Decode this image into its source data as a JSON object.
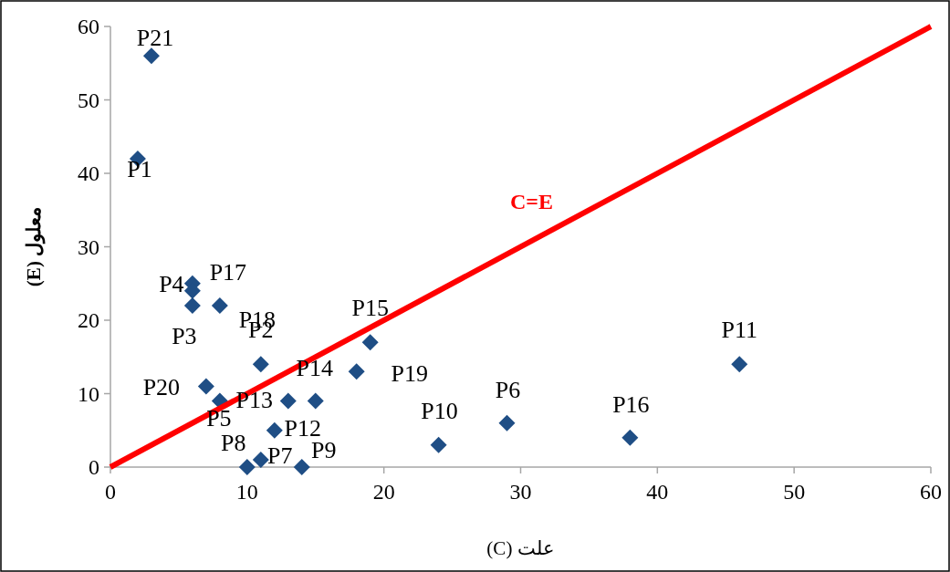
{
  "chart_data": {
    "type": "scatter",
    "xlabel": "علت (C)",
    "ylabel": "معلول (E)",
    "xlim": [
      0,
      60
    ],
    "ylim": [
      0,
      60
    ],
    "xticks": [
      0,
      10,
      20,
      30,
      40,
      50,
      60
    ],
    "yticks": [
      0,
      10,
      20,
      30,
      40,
      50,
      60
    ],
    "grid": false,
    "marker": "diamond",
    "series": [
      {
        "color": "#1f4e85",
        "x": [
          2,
          11,
          6,
          6,
          8,
          29,
          11,
          10,
          14,
          24,
          46,
          12,
          13,
          15,
          19,
          38,
          6,
          8,
          18,
          7,
          3
        ],
        "values": [
          42,
          14,
          22,
          25,
          9,
          6,
          1,
          0,
          0,
          3,
          14,
          5,
          9,
          9,
          17,
          4,
          24,
          22,
          13,
          11,
          56
        ]
      },
      {
        "type": "line",
        "name": "C=E",
        "color": "#ff0000",
        "marker": "none",
        "line_style": "solid",
        "x": [
          0,
          60
        ],
        "values": [
          0,
          60
        ]
      }
    ],
    "annotations": [
      {
        "text": "P1",
        "x": 2,
        "y": 42
      },
      {
        "text": "P2",
        "x": 11,
        "y": 14
      },
      {
        "text": "P3",
        "x": 6,
        "y": 22
      },
      {
        "text": "P4",
        "x": 6,
        "y": 25
      },
      {
        "text": "P5",
        "x": 8,
        "y": 9
      },
      {
        "text": "P6",
        "x": 29,
        "y": 6
      },
      {
        "text": "P7",
        "x": 11,
        "y": 1
      },
      {
        "text": "P8",
        "x": 10,
        "y": 0
      },
      {
        "text": "P9",
        "x": 14,
        "y": 0
      },
      {
        "text": "P10",
        "x": 24,
        "y": 3
      },
      {
        "text": "P11",
        "x": 46,
        "y": 14
      },
      {
        "text": "P12",
        "x": 12,
        "y": 5
      },
      {
        "text": "P13",
        "x": 13,
        "y": 9
      },
      {
        "text": "P14",
        "x": 15,
        "y": 9
      },
      {
        "text": "P15",
        "x": 19,
        "y": 17
      },
      {
        "text": "P16",
        "x": 38,
        "y": 4
      },
      {
        "text": "P17",
        "x": 6,
        "y": 24
      },
      {
        "text": "P18",
        "x": 8,
        "y": 22
      },
      {
        "text": "P19",
        "x": 18,
        "y": 13
      },
      {
        "text": "P20",
        "x": 7,
        "y": 11
      },
      {
        "text": "P21",
        "x": 3,
        "y": 56
      }
    ]
  }
}
